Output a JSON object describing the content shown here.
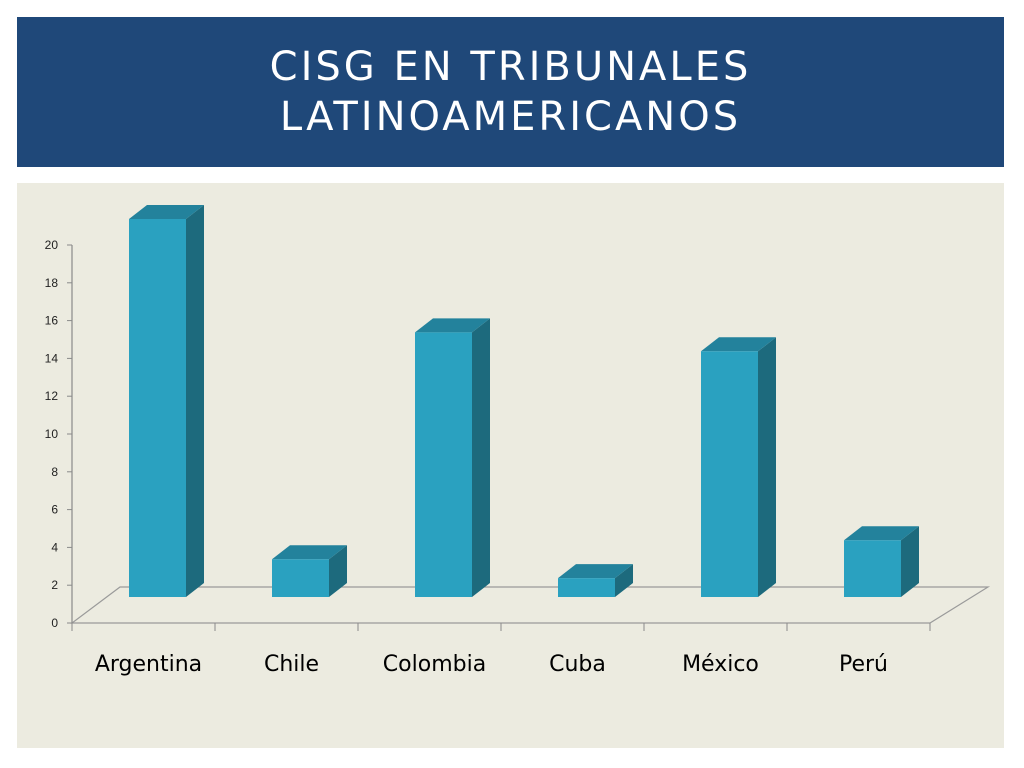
{
  "title": {
    "line1": "CISG en tribunales",
    "line2": "latinoamericanos"
  },
  "colors": {
    "header_bg": "#1f4879",
    "panel_bg": "#ecebe0",
    "bar_front": "#2aa1c0",
    "bar_side": "#1d6a7d",
    "bar_top": "#23829c"
  },
  "chart_data": {
    "type": "bar",
    "style": "3d",
    "categories": [
      "Argentina",
      "Chile",
      "Colombia",
      "Cuba",
      "México",
      "Perú"
    ],
    "values": [
      20,
      2,
      14,
      1,
      13,
      3
    ],
    "ylim": [
      0,
      20
    ],
    "yticks": [
      "0",
      "2",
      "4",
      "6",
      "8",
      "10",
      "12",
      "14",
      "16",
      "18",
      "20"
    ],
    "grid": false,
    "legend": "none"
  }
}
